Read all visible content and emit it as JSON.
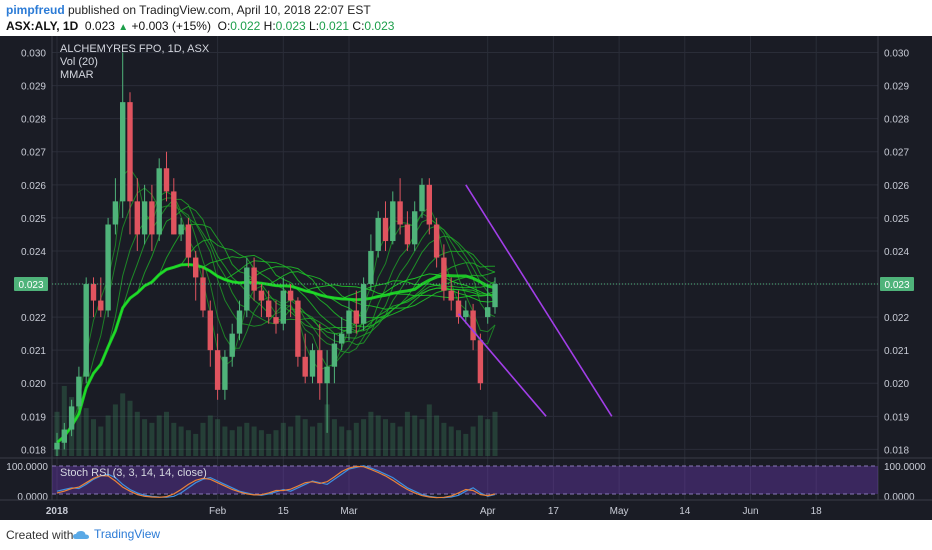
{
  "header": {
    "user": "pimpfreud",
    "published": " published on TradingView.com, April 10, 2018 22:07 EST",
    "symbol": "ASX:ALY, 1D",
    "last": "0.023",
    "change": "+0.003 (+15%)",
    "o_label": "O:",
    "o_val": "0.022",
    "h_label": "H:",
    "h_val": "0.023",
    "l_label": "L:",
    "l_val": "0.021",
    "c_label": "C:",
    "c_val": "0.023"
  },
  "footer": {
    "created": "Created with",
    "brand": "TradingView"
  },
  "chart_data": {
    "type": "candlestick",
    "title": "ALCHEMYRES FPO, 1D, ASX",
    "indicators": [
      "Vol (20)",
      "MMAR"
    ],
    "oscillator": "Stoch RSI (3, 3, 14, 14, close)",
    "last_price_label": "0.023",
    "y_ticks": [
      0.03,
      0.029,
      0.028,
      0.027,
      0.026,
      0.025,
      0.024,
      0.023,
      0.022,
      0.021,
      0.02,
      0.019,
      0.018
    ],
    "y_tick_labels": [
      "0.030",
      "0.029",
      "0.028",
      "0.027",
      "0.026",
      "0.025",
      "0.024",
      "0.023",
      "0.022",
      "0.021",
      "0.020",
      "0.019",
      "0.018"
    ],
    "ylim": [
      0.0178,
      0.0305
    ],
    "osc_ticks": [
      "100.0000",
      "0.0000"
    ],
    "x_labels": [
      {
        "i": 0,
        "text": "2018"
      },
      {
        "i": 22,
        "text": "Feb"
      },
      {
        "i": 31,
        "text": "15"
      },
      {
        "i": 40,
        "text": "Mar"
      },
      {
        "i": 59,
        "text": "Apr"
      },
      {
        "i": 68,
        "text": "17"
      },
      {
        "i": 77,
        "text": "May"
      },
      {
        "i": 86,
        "text": "14"
      },
      {
        "i": 95,
        "text": "Jun"
      },
      {
        "i": 104,
        "text": "18"
      }
    ],
    "candles": [
      [
        0.018,
        0.0185,
        0.0178,
        0.0182
      ],
      [
        0.0182,
        0.0188,
        0.018,
        0.0186
      ],
      [
        0.0186,
        0.0195,
        0.0184,
        0.0193
      ],
      [
        0.0193,
        0.0205,
        0.0192,
        0.0202
      ],
      [
        0.0202,
        0.0232,
        0.02,
        0.023
      ],
      [
        0.023,
        0.0232,
        0.022,
        0.0225
      ],
      [
        0.0225,
        0.0232,
        0.022,
        0.0222
      ],
      [
        0.0222,
        0.025,
        0.022,
        0.0248
      ],
      [
        0.0248,
        0.0262,
        0.0245,
        0.0255
      ],
      [
        0.0255,
        0.03,
        0.025,
        0.0285
      ],
      [
        0.0285,
        0.0288,
        0.0245,
        0.0255
      ],
      [
        0.0255,
        0.0262,
        0.024,
        0.0245
      ],
      [
        0.0245,
        0.026,
        0.0242,
        0.0255
      ],
      [
        0.0255,
        0.026,
        0.024,
        0.0245
      ],
      [
        0.0245,
        0.0268,
        0.0243,
        0.0265
      ],
      [
        0.0265,
        0.027,
        0.0255,
        0.0258
      ],
      [
        0.0258,
        0.0262,
        0.0245,
        0.0245
      ],
      [
        0.0245,
        0.025,
        0.0243,
        0.0248
      ],
      [
        0.0248,
        0.025,
        0.0235,
        0.0238
      ],
      [
        0.0238,
        0.024,
        0.0225,
        0.0232
      ],
      [
        0.0232,
        0.0235,
        0.022,
        0.0222
      ],
      [
        0.0222,
        0.0225,
        0.0205,
        0.021
      ],
      [
        0.021,
        0.0215,
        0.0195,
        0.0198
      ],
      [
        0.0198,
        0.021,
        0.0195,
        0.0208
      ],
      [
        0.0208,
        0.0218,
        0.0205,
        0.0215
      ],
      [
        0.0215,
        0.0225,
        0.0213,
        0.0222
      ],
      [
        0.0222,
        0.0238,
        0.022,
        0.0235
      ],
      [
        0.0235,
        0.0238,
        0.0225,
        0.0228
      ],
      [
        0.0228,
        0.023,
        0.022,
        0.0225
      ],
      [
        0.0225,
        0.0228,
        0.0218,
        0.022
      ],
      [
        0.022,
        0.0225,
        0.0215,
        0.0218
      ],
      [
        0.0218,
        0.0232,
        0.0216,
        0.0228
      ],
      [
        0.0228,
        0.023,
        0.022,
        0.0225
      ],
      [
        0.0225,
        0.0226,
        0.0205,
        0.0208
      ],
      [
        0.0208,
        0.0215,
        0.02,
        0.0202
      ],
      [
        0.0202,
        0.0212,
        0.02,
        0.021
      ],
      [
        0.021,
        0.0218,
        0.0195,
        0.02
      ],
      [
        0.02,
        0.021,
        0.0185,
        0.0205
      ],
      [
        0.0205,
        0.0215,
        0.02,
        0.0212
      ],
      [
        0.0212,
        0.022,
        0.021,
        0.0215
      ],
      [
        0.0215,
        0.0225,
        0.0213,
        0.0222
      ],
      [
        0.0222,
        0.0228,
        0.0215,
        0.0218
      ],
      [
        0.0218,
        0.0232,
        0.0216,
        0.023
      ],
      [
        0.023,
        0.0245,
        0.0228,
        0.024
      ],
      [
        0.024,
        0.0252,
        0.0238,
        0.025
      ],
      [
        0.025,
        0.0255,
        0.024,
        0.0243
      ],
      [
        0.0243,
        0.0258,
        0.0242,
        0.0255
      ],
      [
        0.0255,
        0.0262,
        0.0245,
        0.0248
      ],
      [
        0.0248,
        0.0252,
        0.024,
        0.0242
      ],
      [
        0.0242,
        0.0255,
        0.024,
        0.0252
      ],
      [
        0.0252,
        0.0262,
        0.025,
        0.026
      ],
      [
        0.026,
        0.0262,
        0.0245,
        0.0248
      ],
      [
        0.0248,
        0.025,
        0.0235,
        0.0238
      ],
      [
        0.0238,
        0.0242,
        0.0225,
        0.0228
      ],
      [
        0.0228,
        0.0232,
        0.0222,
        0.0225
      ],
      [
        0.0225,
        0.0228,
        0.0218,
        0.022
      ],
      [
        0.022,
        0.0225,
        0.0218,
        0.0222
      ],
      [
        0.0222,
        0.0224,
        0.021,
        0.0213
      ],
      [
        0.0213,
        0.0215,
        0.0198,
        0.02
      ],
      [
        0.022,
        0.023,
        0.0218,
        0.0223
      ],
      [
        0.0223,
        0.0232,
        0.0221,
        0.023
      ]
    ],
    "series": [
      {
        "name": "Vol (20)",
        "values": [
          60,
          95,
          80,
          70,
          65,
          50,
          40,
          55,
          70,
          85,
          75,
          60,
          50,
          45,
          55,
          60,
          45,
          40,
          35,
          30,
          45,
          55,
          50,
          40,
          35,
          40,
          45,
          40,
          35,
          30,
          35,
          45,
          40,
          55,
          50,
          40,
          45,
          70,
          50,
          40,
          35,
          45,
          50,
          60,
          55,
          50,
          45,
          40,
          60,
          55,
          50,
          70,
          55,
          45,
          40,
          35,
          30,
          40,
          55,
          50,
          60
        ]
      },
      {
        "name": "Stoch RSI",
        "values": [
          20,
          25,
          30,
          28,
          40,
          55,
          65,
          70,
          60,
          40,
          25,
          15,
          8,
          5,
          3,
          2,
          5,
          15,
          30,
          45,
          55,
          60,
          50,
          40,
          30,
          20,
          15,
          10,
          8,
          12,
          18,
          25,
          20,
          30,
          40,
          50,
          45,
          40,
          55,
          70,
          85,
          90,
          95,
          88,
          80,
          70,
          60,
          45,
          30,
          20,
          10,
          5,
          2,
          1,
          3,
          8,
          20,
          30,
          15,
          5,
          10
        ],
        "k": [
          15,
          20,
          28,
          32,
          45,
          58,
          66,
          65,
          50,
          32,
          20,
          10,
          5,
          3,
          2,
          4,
          12,
          25,
          40,
          52,
          58,
          55,
          45,
          35,
          25,
          18,
          12,
          9,
          10,
          15,
          22,
          22,
          26,
          35,
          45,
          48,
          43,
          48,
          62,
          78,
          88,
          93,
          92,
          84,
          75,
          65,
          52,
          38,
          25,
          15,
          7,
          3,
          1,
          2,
          6,
          15,
          25,
          22,
          10,
          7,
          12
        ]
      }
    ],
    "trendlines": [
      {
        "x1": 56,
        "y1": 0.026,
        "x2": 76,
        "y2": 0.019
      },
      {
        "x1": 55,
        "y1": 0.0221,
        "x2": 67,
        "y2": 0.019
      }
    ]
  }
}
